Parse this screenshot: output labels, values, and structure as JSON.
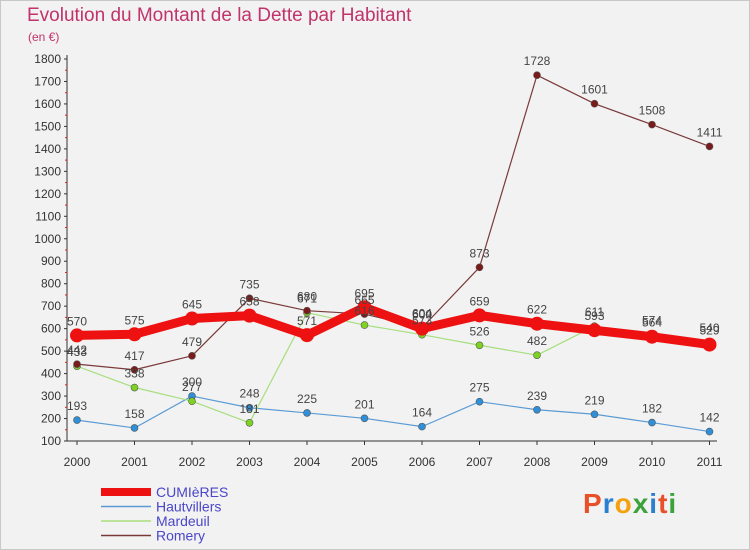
{
  "header": {
    "title": "Evolution du Montant de la Dette par Habitant",
    "subtitle": "(en €)"
  },
  "logo": {
    "letters": [
      "P",
      "r",
      "o",
      "x",
      "i",
      "t",
      "i"
    ],
    "colors": [
      "#e8502a",
      "#2a7fd0",
      "#f2a20f",
      "#3aa33a",
      "#2a7fd0",
      "#e8502a",
      "#3aa33a"
    ]
  },
  "chart_data": {
    "type": "line",
    "x": [
      "2000",
      "2001",
      "2002",
      "2003",
      "2004",
      "2005",
      "2006",
      "2007",
      "2008",
      "2009",
      "2010",
      "2011"
    ],
    "ylim": [
      100,
      1800
    ],
    "yticks": [
      100,
      200,
      300,
      400,
      500,
      600,
      700,
      800,
      900,
      1000,
      1100,
      1200,
      1300,
      1400,
      1500,
      1600,
      1700,
      1800
    ],
    "grid": false,
    "legend_position": "bottom-left",
    "series": [
      {
        "name": "Hautvillers",
        "color": "#5b9bd5",
        "marker_fill": "#2f8fd8",
        "width": 1.2,
        "values": [
          193,
          158,
          300,
          248,
          225,
          201,
          164,
          275,
          239,
          219,
          182,
          142
        ]
      },
      {
        "name": "Mardeuil",
        "color": "#a6df7d",
        "marker_fill": "#7ed321",
        "width": 1.2,
        "values": [
          433,
          338,
          277,
          181,
          671,
          616,
          573,
          526,
          482,
          611,
          574,
          540
        ]
      },
      {
        "name": "Romery",
        "color": "#7a3a3a",
        "marker_fill": "#7a1a1a",
        "width": 1.2,
        "values": [
          442,
          417,
          479,
          735,
          680,
          665,
          604,
          873,
          1728,
          1601,
          1508,
          1411
        ]
      },
      {
        "name": "CUMIèRES",
        "color": "#ee1111",
        "marker_fill": "#ee1111",
        "width": 9,
        "values": [
          570,
          575,
          645,
          658,
          571,
          695,
          600,
          659,
          622,
          593,
          564,
          529
        ]
      }
    ],
    "legend_order": [
      "CUMIèRES",
      "Hautvillers",
      "Mardeuil",
      "Romery"
    ],
    "legend_text_color": "#4a46c8"
  }
}
